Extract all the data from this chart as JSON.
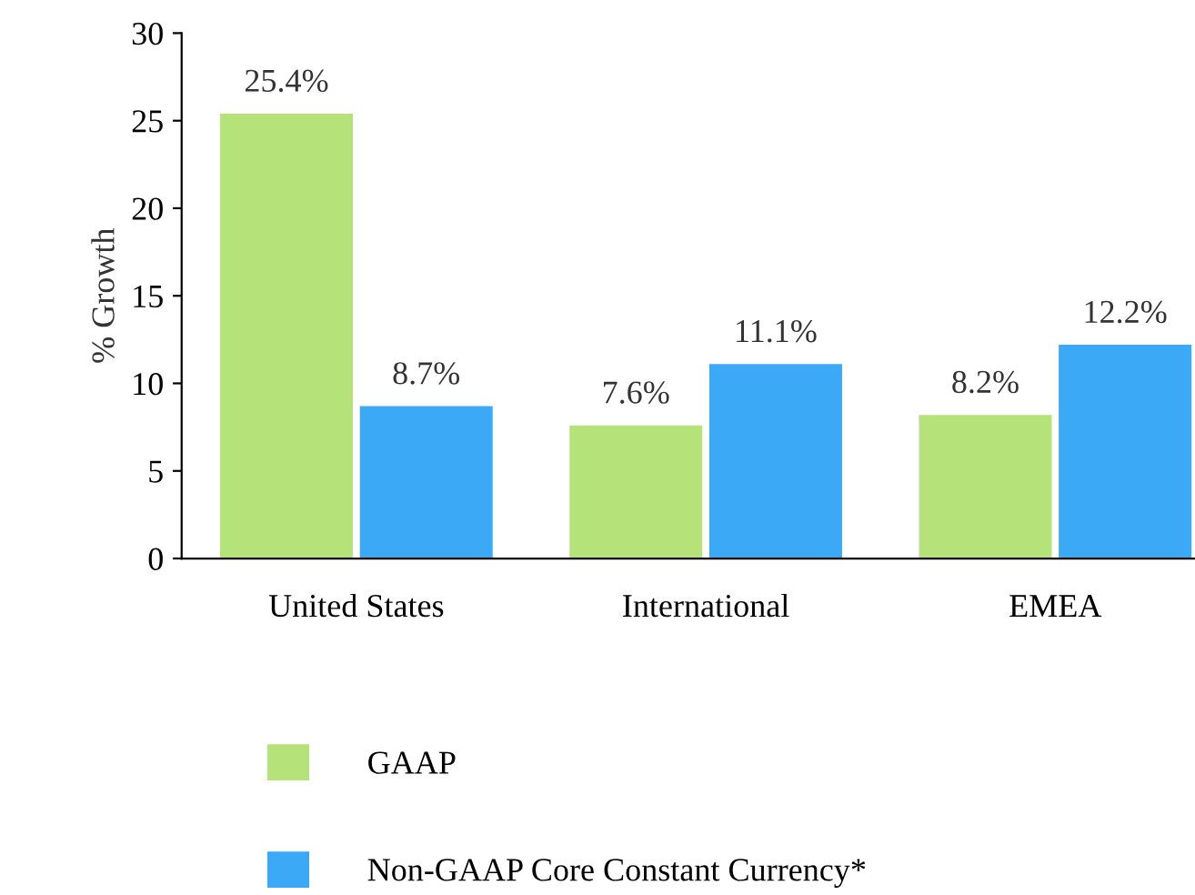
{
  "chart_data": {
    "type": "bar",
    "ylabel": "% Growth",
    "categories": [
      "United States",
      "International",
      "EMEA"
    ],
    "series": [
      {
        "name": "GAAP",
        "color": "#b5e37a",
        "values": [
          25.4,
          7.6,
          8.2
        ],
        "value_labels": [
          "25.4%",
          "7.6%",
          "8.2%"
        ]
      },
      {
        "name": "Non-GAAP Core Constant Currency*",
        "color": "#3ba9f5",
        "values": [
          8.7,
          11.1,
          12.2
        ],
        "value_labels": [
          "8.7%",
          "11.1%",
          "12.2%"
        ]
      }
    ],
    "ylim": [
      0,
      30
    ],
    "yticks": [
      0,
      5,
      10,
      15,
      20,
      25,
      30
    ],
    "grid": false,
    "legend": "bottom"
  }
}
